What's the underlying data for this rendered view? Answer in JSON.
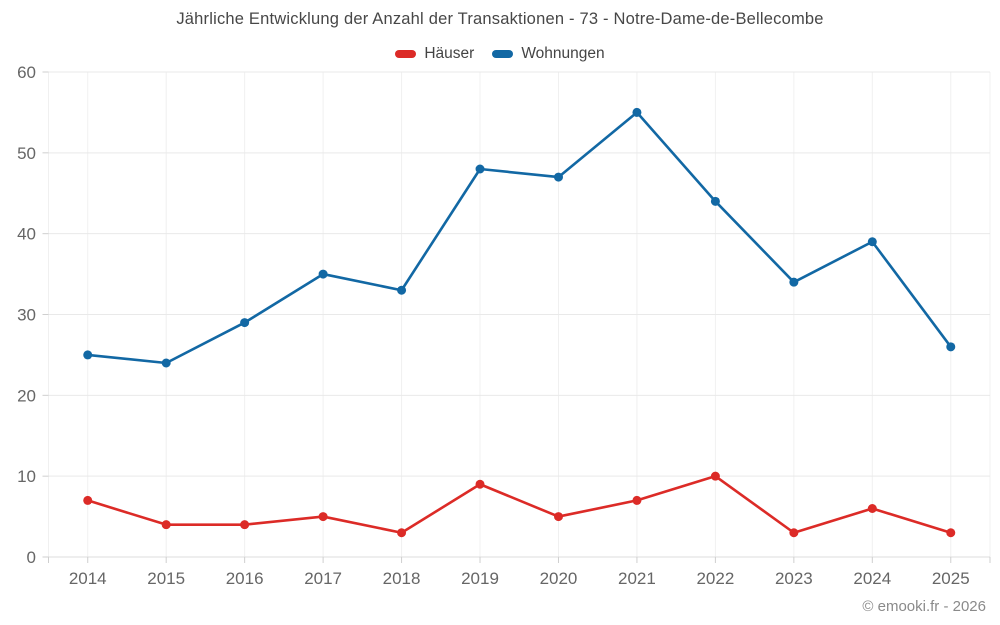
{
  "title": "Jährliche Entwicklung der Anzahl der Transaktionen - 73 - Notre-Dame-de-Bellecombe",
  "footer": "© emooki.fr - 2026",
  "colors": {
    "haeuser": "#dc2b27",
    "wohnungen": "#1268a4",
    "grid_h": "#e9e9e9",
    "grid_v": "#f0f0f0",
    "axis_line": "#dcdcdc",
    "tick": "#cfcfcf",
    "axis_text": "#666666"
  },
  "chart_data": {
    "type": "line",
    "categories": [
      "2014",
      "2015",
      "2016",
      "2017",
      "2018",
      "2019",
      "2020",
      "2021",
      "2022",
      "2023",
      "2024",
      "2025"
    ],
    "series": [
      {
        "name": "Häuser",
        "color": "#dc2b27",
        "values": [
          7,
          4,
          4,
          5,
          3,
          9,
          5,
          7,
          10,
          3,
          6,
          3
        ]
      },
      {
        "name": "Wohnungen",
        "color": "#1268a4",
        "values": [
          25,
          24,
          29,
          35,
          33,
          48,
          47,
          55,
          44,
          34,
          39,
          26
        ]
      }
    ],
    "title": "Jährliche Entwicklung der Anzahl der Transaktionen - 73 - Notre-Dame-de-Bellecombe",
    "xlabel": "",
    "ylabel": "",
    "ylim": [
      0,
      60
    ],
    "yticks": [
      0,
      10,
      20,
      30,
      40,
      50,
      60
    ],
    "grid": true,
    "legend_position": "top",
    "marker": "circle"
  }
}
